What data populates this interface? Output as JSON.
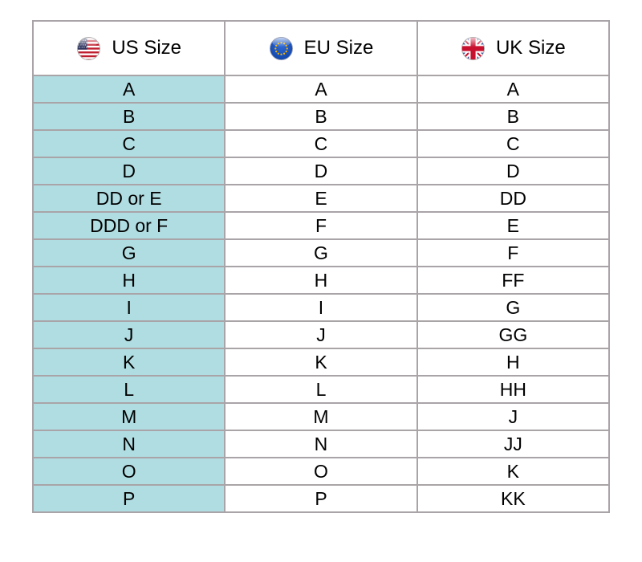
{
  "chart_data": {
    "type": "table",
    "columns": [
      "US Size",
      "EU Size",
      "UK Size"
    ],
    "rows": [
      [
        "A",
        "A",
        "A"
      ],
      [
        "B",
        "B",
        "B"
      ],
      [
        "C",
        "C",
        "C"
      ],
      [
        "D",
        "D",
        "D"
      ],
      [
        "DD or E",
        "E",
        "DD"
      ],
      [
        "DDD or F",
        "F",
        "E"
      ],
      [
        "G",
        "G",
        "F"
      ],
      [
        "H",
        "H",
        "FF"
      ],
      [
        "I",
        "I",
        "G"
      ],
      [
        "J",
        "J",
        "GG"
      ],
      [
        "K",
        "K",
        "H"
      ],
      [
        "L",
        "L",
        "HH"
      ],
      [
        "M",
        "M",
        "J"
      ],
      [
        "N",
        "N",
        "JJ"
      ],
      [
        "O",
        "O",
        "K"
      ],
      [
        "P",
        "P",
        "KK"
      ]
    ]
  },
  "header_icons": [
    "us-flag-icon",
    "eu-flag-icon",
    "uk-flag-icon"
  ],
  "style": {
    "us_column_bg": "#b0dde2",
    "border_color": "#a9a4a7",
    "header_bg": "#ffffff",
    "text_color": "#000000"
  }
}
